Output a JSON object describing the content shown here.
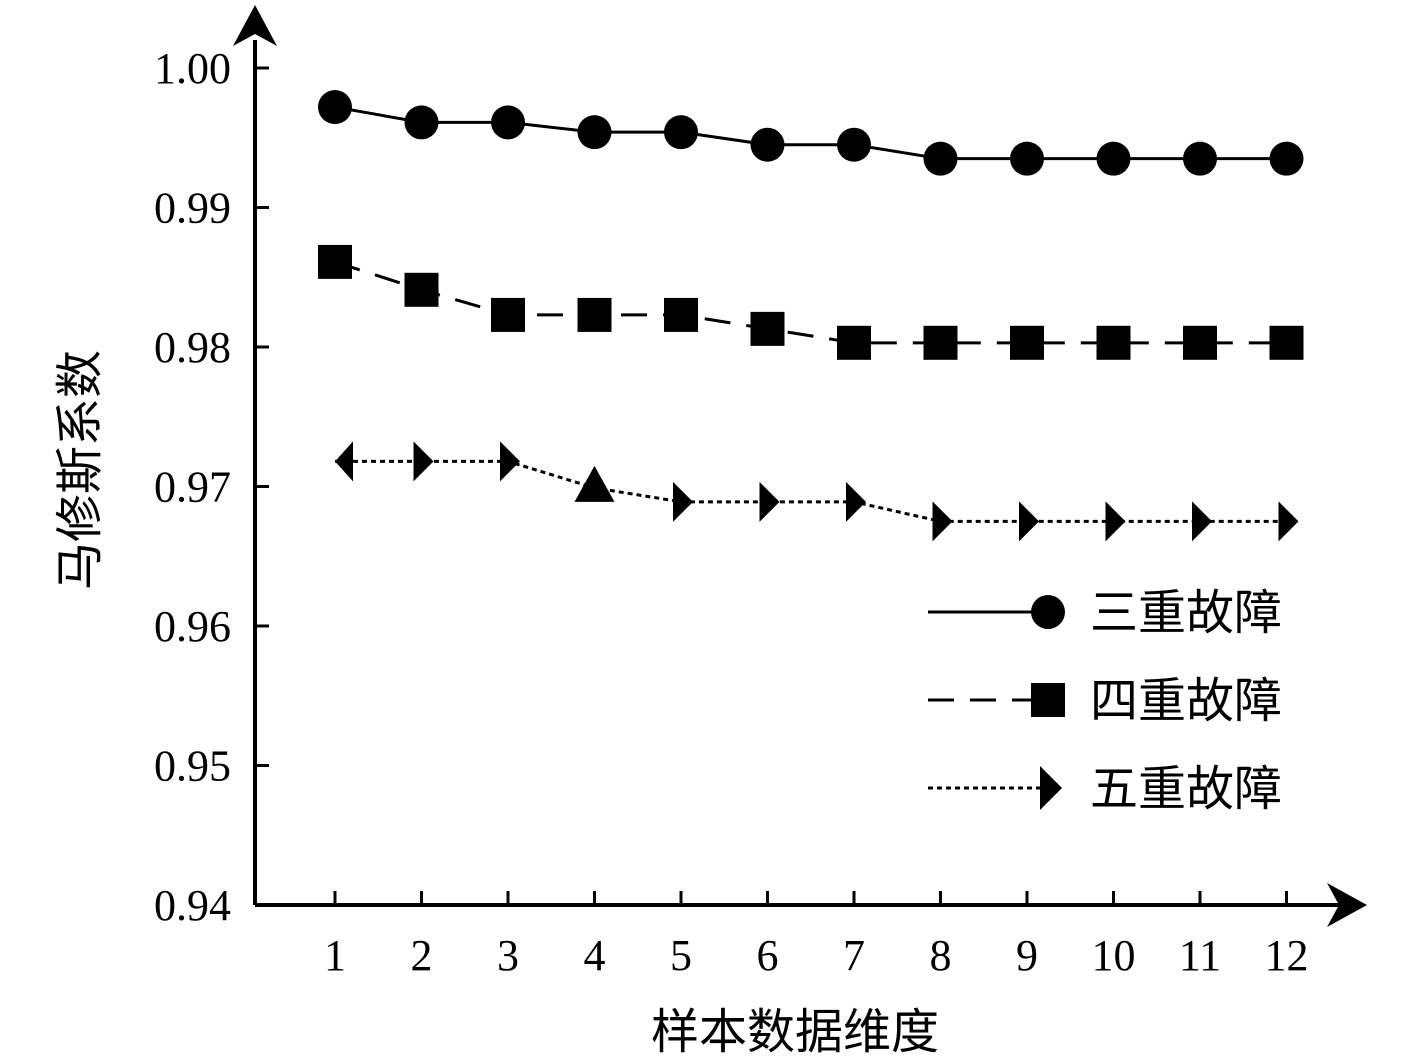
{
  "chart_data": {
    "type": "line",
    "xlabel": "样本数据维度",
    "ylabel": "马修斯系数",
    "x": [
      1,
      2,
      3,
      4,
      5,
      6,
      7,
      8,
      9,
      10,
      11,
      12
    ],
    "x_tick_labels": [
      "1",
      "2",
      "3",
      "4",
      "5",
      "6",
      "7",
      "8",
      "9",
      "10",
      "11",
      "12"
    ],
    "ylim": [
      0.94,
      1.0
    ],
    "y_ticks": [
      0.94,
      0.95,
      0.96,
      0.97,
      0.98,
      0.99,
      1.0
    ],
    "y_tick_labels": [
      "0.94",
      "0.95",
      "0.96",
      "0.97",
      "0.98",
      "0.99",
      "1.00"
    ],
    "grid": false,
    "legend_position": "right",
    "series": [
      {
        "name": "三重故障",
        "line_style": "solid",
        "marker": "circle",
        "color": "#000000",
        "values": [
          0.9972,
          0.9961,
          0.9961,
          0.9954,
          0.9954,
          0.9945,
          0.9945,
          0.9935,
          0.9935,
          0.9935,
          0.9935,
          0.9935
        ]
      },
      {
        "name": "四重故障",
        "line_style": "dashed",
        "marker": "square",
        "color": "#000000",
        "values": [
          0.9861,
          0.9841,
          0.9823,
          0.9823,
          0.9823,
          0.9813,
          0.9803,
          0.9803,
          0.9803,
          0.9803,
          0.9803,
          0.9803
        ]
      },
      {
        "name": "五重故障",
        "line_style": "dotted",
        "marker": "triangle",
        "color": "#000000",
        "values": [
          0.9718,
          0.9718,
          0.9718,
          0.9699,
          0.9689,
          0.9689,
          0.9689,
          0.9675,
          0.9675,
          0.9675,
          0.9675,
          0.9675
        ]
      }
    ]
  }
}
